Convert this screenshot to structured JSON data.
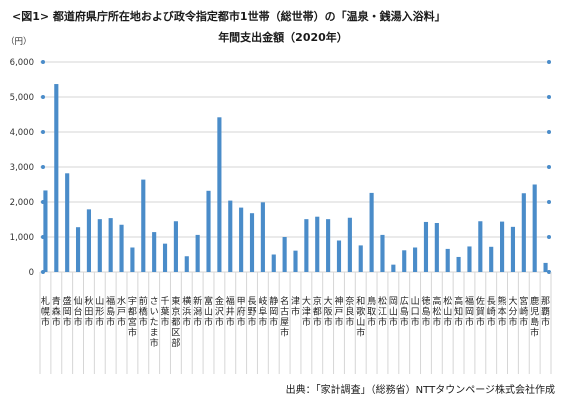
{
  "title": "<図1>  都道府県庁所在地および政令指定都市1世帯（総世帯）の「温泉・銭湯入浴料」",
  "subtitle": "年間支出金額（2020年）",
  "unit": "（円）",
  "source": "出典：「家計調査」（総務省）NTTタウンページ株式会社作成",
  "colors": {
    "bar": "#4a8cc9",
    "grid": "#d6d6d6",
    "marker": "#4a8cc9"
  },
  "chart_data": {
    "type": "bar",
    "title": "<図1>  都道府県庁所在地および政令指定都市1世帯（総世帯）の「温泉・銭湯入浴料」",
    "subtitle": "年間支出金額（2020年）",
    "ylabel": "（円）",
    "ylim": [
      0,
      6000
    ],
    "yticks": [
      "0",
      "1,000",
      "2,000",
      "3,000",
      "4,000",
      "5,000",
      "6,000"
    ],
    "grid": true,
    "categories": [
      "札幌市",
      "青森市",
      "盛岡市",
      "仙台市",
      "秋田市",
      "山形市",
      "福島市",
      "水戸市",
      "宇都宮市",
      "前橋市",
      "さいたま市",
      "千葉市",
      "東京都区部",
      "横浜市",
      "新潟市",
      "富山市",
      "金沢市",
      "福井市",
      "甲府市",
      "長野市",
      "岐阜市",
      "静岡市",
      "名古屋市",
      "津市",
      "大津市",
      "京都市",
      "大阪市",
      "神戸市",
      "奈良市",
      "和歌山市",
      "鳥取市",
      "松江市",
      "岡山市",
      "広島市",
      "山口市",
      "徳島市",
      "高松市",
      "松山市",
      "高知市",
      "福岡市",
      "佐賀市",
      "長崎市",
      "熊本市",
      "大分市",
      "宮崎市",
      "鹿児島市",
      "那覇市"
    ],
    "values": [
      2330,
      5370,
      2820,
      1280,
      1790,
      1510,
      1540,
      1350,
      700,
      2640,
      1140,
      810,
      1450,
      450,
      1060,
      2320,
      4420,
      2040,
      1840,
      1680,
      1990,
      500,
      1000,
      610,
      1510,
      1580,
      1510,
      900,
      1550,
      760,
      2260,
      1060,
      210,
      620,
      700,
      1430,
      1400,
      660,
      430,
      730,
      1450,
      720,
      1440,
      1290,
      2250,
      2500,
      260
    ]
  }
}
